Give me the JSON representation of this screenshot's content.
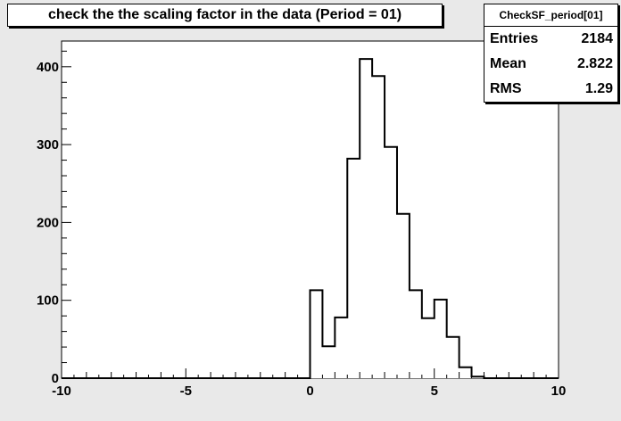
{
  "title": "check the the scaling factor in the data (Period = 01)",
  "stats": {
    "name": "CheckSF_period[01]",
    "rows": [
      {
        "label": "Entries",
        "value": "2184"
      },
      {
        "label": "Mean",
        "value": "2.822"
      },
      {
        "label": "RMS",
        "value": "1.29"
      }
    ]
  },
  "chart_data": {
    "type": "bar",
    "title": "check the the scaling factor in the data (Period = 01)",
    "xlim": [
      -10,
      10
    ],
    "ylim": [
      0,
      433
    ],
    "x_ticks": [
      "-10",
      "-5",
      "0",
      "5",
      "10"
    ],
    "y_ticks": [
      "0",
      "100",
      "200",
      "300",
      "400"
    ],
    "bin_width": 0.5,
    "bin_edges": [
      0,
      0.5,
      1.0,
      1.5,
      2.0,
      2.5,
      3.0,
      3.5,
      4.0,
      4.5,
      5.0,
      5.5,
      6.0,
      6.5
    ],
    "values": [
      113,
      41,
      78,
      282,
      410,
      388,
      297,
      211,
      113,
      77,
      101,
      53,
      14,
      2
    ],
    "grid": false,
    "legend": "none",
    "colors": {
      "line": "#000000",
      "fill": "#ffffff",
      "frame_bg": "#ffffff",
      "canvas_bg": "#e9e9e9"
    }
  }
}
